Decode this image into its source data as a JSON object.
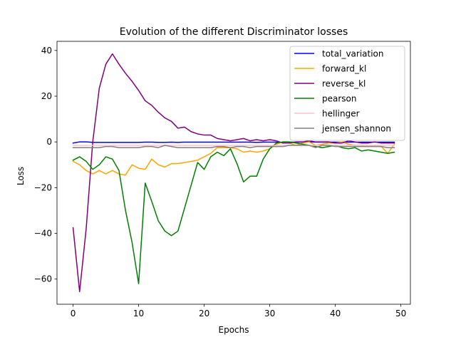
{
  "chart_data": {
    "type": "line",
    "title": "Evolution of the different Discriminator losses",
    "xlabel": "Epochs",
    "ylabel": "Loss",
    "xlim": [
      -2.45,
      51.45
    ],
    "ylim": [
      -71,
      44
    ],
    "xticks": [
      0,
      10,
      20,
      30,
      40,
      50
    ],
    "yticks": [
      -60,
      -40,
      -20,
      0,
      20,
      40
    ],
    "grid": false,
    "legend_position": "top-right",
    "series": [
      {
        "name": "total_variation",
        "color": "#0000ff",
        "values": [
          -0.5,
          0,
          0,
          -0.2,
          -0.2,
          -0.2,
          -0.2,
          -0.2,
          -0.2,
          -0.2,
          -0.2,
          -0.1,
          -0.1,
          -0.2,
          -0.2,
          -0.1,
          -0.2,
          -0.1,
          -0.1,
          -0.1,
          -0.1,
          -0.1,
          -0.1,
          -0.1,
          -0.1,
          -0.1,
          -0.1,
          -0.1,
          -0.2,
          -0.1,
          -0.1,
          -0.1,
          -0.2,
          -0.1,
          -0.1,
          -0.1,
          0,
          -0.1,
          -0.1,
          -0.1,
          -0.1,
          -0.1,
          -0.1,
          -0.1,
          -0.1,
          -0.1,
          -0.1,
          -0.1,
          -0.1,
          -0.1
        ]
      },
      {
        "name": "forward_kl",
        "color": "#ffa500",
        "values": [
          -8.5,
          -10,
          -12.5,
          -14,
          -12.5,
          -14,
          -12.5,
          -14,
          -14.5,
          -10,
          -11.5,
          -12,
          -7.5,
          -10,
          -11,
          -9.5,
          -9.5,
          -9,
          -8.5,
          -8,
          -6.5,
          -5,
          -2.5,
          -2.5,
          -2.5,
          -3,
          -4.5,
          -4,
          -4.5,
          -4,
          -3,
          -1,
          0,
          -0.5,
          -1.5,
          -0.5,
          0,
          -1.5,
          -1,
          -0.5,
          -0.5,
          0,
          -1,
          -1.5,
          -1.5,
          -2,
          -1.5,
          -2,
          -5,
          -1
        ]
      },
      {
        "name": "reverse_kl",
        "color": "#800080",
        "values": [
          -37.5,
          -65.5,
          -38,
          0,
          23.5,
          34,
          38.5,
          34,
          30,
          26.5,
          22.5,
          18,
          16,
          13,
          10.5,
          9,
          6,
          6.5,
          4.5,
          3.5,
          3,
          3,
          1.5,
          1,
          0.5,
          1,
          1.5,
          0.5,
          1,
          0.5,
          1,
          0.5,
          -0.5,
          -0.5,
          0,
          0,
          0.5,
          0,
          0,
          0,
          -0.5,
          -0.5,
          0.5,
          0,
          -0.5,
          -0.5,
          0,
          -0.5,
          -0.5,
          -0.5
        ]
      },
      {
        "name": "pearson",
        "color": "#008000",
        "values": [
          -8,
          -6.5,
          -8.5,
          -12,
          -10,
          -6.5,
          -7.5,
          -12.5,
          -30,
          -44,
          -62,
          -18,
          -26,
          -34.5,
          -39,
          -41,
          -39,
          -29,
          -19,
          -9,
          -12,
          -6.5,
          -4.5,
          -6,
          -3,
          -9.5,
          -17.5,
          -15,
          -15,
          -7.5,
          -3,
          -0.5,
          0,
          0,
          -0.5,
          -1,
          -1.5,
          -2,
          -2.5,
          -2,
          -1.5,
          -2.5,
          -3,
          -2.5,
          -4,
          -3.5,
          -4,
          -4.5,
          -5,
          -4.5
        ]
      },
      {
        "name": "hellinger",
        "color": "#ffc0cb",
        "values": [
          -1.5,
          -1.5,
          -1.5,
          -1.5,
          -1.5,
          -1.5,
          -1.5,
          -1.5,
          -1.5,
          -1.5,
          -1.5,
          -1.5,
          -1.5,
          -1.5,
          -1.5,
          -1.5,
          -1.5,
          -1.5,
          -1.5,
          -1.5,
          -1.5,
          -1.5,
          -1.5,
          -1.5,
          -1.5,
          -1.5,
          -1.5,
          -1.5,
          -1.5,
          -1.5,
          -1.5,
          -1.5,
          -1.5,
          -1.5,
          -1.5,
          -1.5,
          -1.5,
          -1.5,
          -1.5,
          -1.5,
          -1.5,
          -1.5,
          -1.5,
          -1.5,
          -1.5,
          -1.5,
          -1.5,
          -1.5,
          -1.5,
          -1.5
        ]
      },
      {
        "name": "jensen_shannon",
        "color": "#808080",
        "values": [
          -2.5,
          -2.5,
          -2.5,
          -2.5,
          -2.5,
          -2,
          -2,
          -2.5,
          -2.5,
          -2.5,
          -2.5,
          -2,
          -2,
          -2.5,
          -1.5,
          -2,
          -2.5,
          -2.5,
          -2.5,
          -2.5,
          -2.5,
          -2.5,
          -2,
          -2,
          -2.5,
          -2,
          -2,
          -2.5,
          -2,
          -2,
          -2,
          -2,
          -2,
          -1.5,
          -1.5,
          -1.5,
          -1.5,
          -2.5,
          -1.5,
          -1.5,
          -2,
          -2,
          -2,
          -2,
          -2,
          -2,
          -2,
          -2,
          -2.5,
          -2.5
        ]
      }
    ]
  }
}
